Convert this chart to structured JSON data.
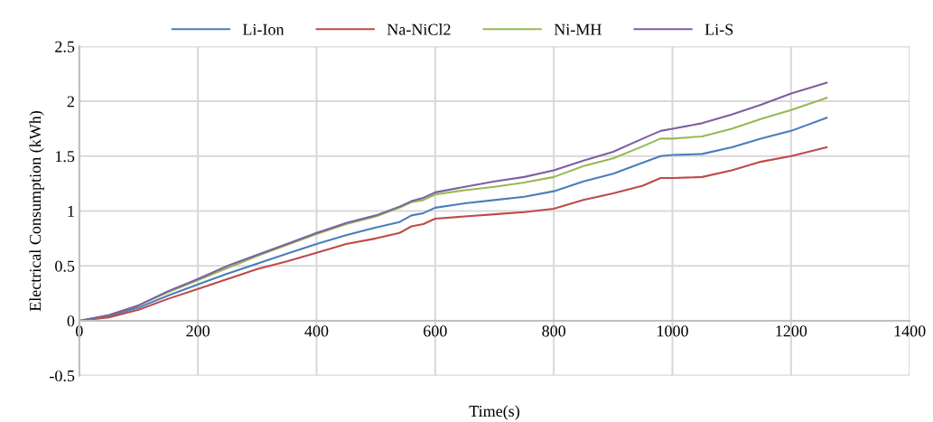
{
  "chart_data": {
    "type": "line",
    "xlabel": "Time(s)",
    "ylabel": "Electrical Consumption (kWh)",
    "x": [
      0,
      50,
      100,
      150,
      200,
      250,
      300,
      350,
      400,
      450,
      500,
      540,
      560,
      580,
      600,
      650,
      700,
      750,
      800,
      850,
      900,
      950,
      980,
      1000,
      1050,
      1100,
      1150,
      1200,
      1260
    ],
    "series": [
      {
        "name": "Li-Ion",
        "color": "#4a7ebb",
        "values": [
          0,
          0.04,
          0.12,
          0.23,
          0.33,
          0.43,
          0.52,
          0.61,
          0.7,
          0.78,
          0.85,
          0.9,
          0.96,
          0.98,
          1.03,
          1.07,
          1.1,
          1.13,
          1.18,
          1.27,
          1.34,
          1.44,
          1.5,
          1.51,
          1.52,
          1.58,
          1.66,
          1.73,
          1.85
        ]
      },
      {
        "name": "Na-NiCl2",
        "color": "#be4b48",
        "values": [
          0,
          0.03,
          0.1,
          0.2,
          0.29,
          0.38,
          0.47,
          0.54,
          0.62,
          0.7,
          0.75,
          0.8,
          0.86,
          0.88,
          0.93,
          0.95,
          0.97,
          0.99,
          1.02,
          1.1,
          1.16,
          1.23,
          1.3,
          1.3,
          1.31,
          1.37,
          1.45,
          1.5,
          1.58
        ]
      },
      {
        "name": "Ni-MH",
        "color": "#98b954",
        "values": [
          0,
          0.05,
          0.14,
          0.26,
          0.37,
          0.48,
          0.59,
          0.69,
          0.79,
          0.88,
          0.95,
          1.03,
          1.08,
          1.1,
          1.15,
          1.19,
          1.22,
          1.26,
          1.31,
          1.41,
          1.48,
          1.59,
          1.66,
          1.66,
          1.68,
          1.75,
          1.84,
          1.92,
          2.03
        ]
      },
      {
        "name": "Li-S",
        "color": "#7d60a0",
        "values": [
          0,
          0.05,
          0.14,
          0.27,
          0.38,
          0.5,
          0.6,
          0.7,
          0.8,
          0.89,
          0.96,
          1.04,
          1.09,
          1.12,
          1.17,
          1.22,
          1.27,
          1.31,
          1.37,
          1.46,
          1.54,
          1.66,
          1.73,
          1.75,
          1.8,
          1.88,
          1.97,
          2.07,
          2.17
        ]
      }
    ],
    "xlim": [
      0,
      1400
    ],
    "xticks": [
      0,
      200,
      400,
      600,
      800,
      1000,
      1200,
      1400
    ],
    "ylim": [
      -0.5,
      2.5
    ],
    "yticks": [
      -0.5,
      0,
      0.5,
      1,
      1.5,
      2,
      2.5
    ],
    "grid": true,
    "legend": "top",
    "marker": "none",
    "line_style": "solid"
  }
}
